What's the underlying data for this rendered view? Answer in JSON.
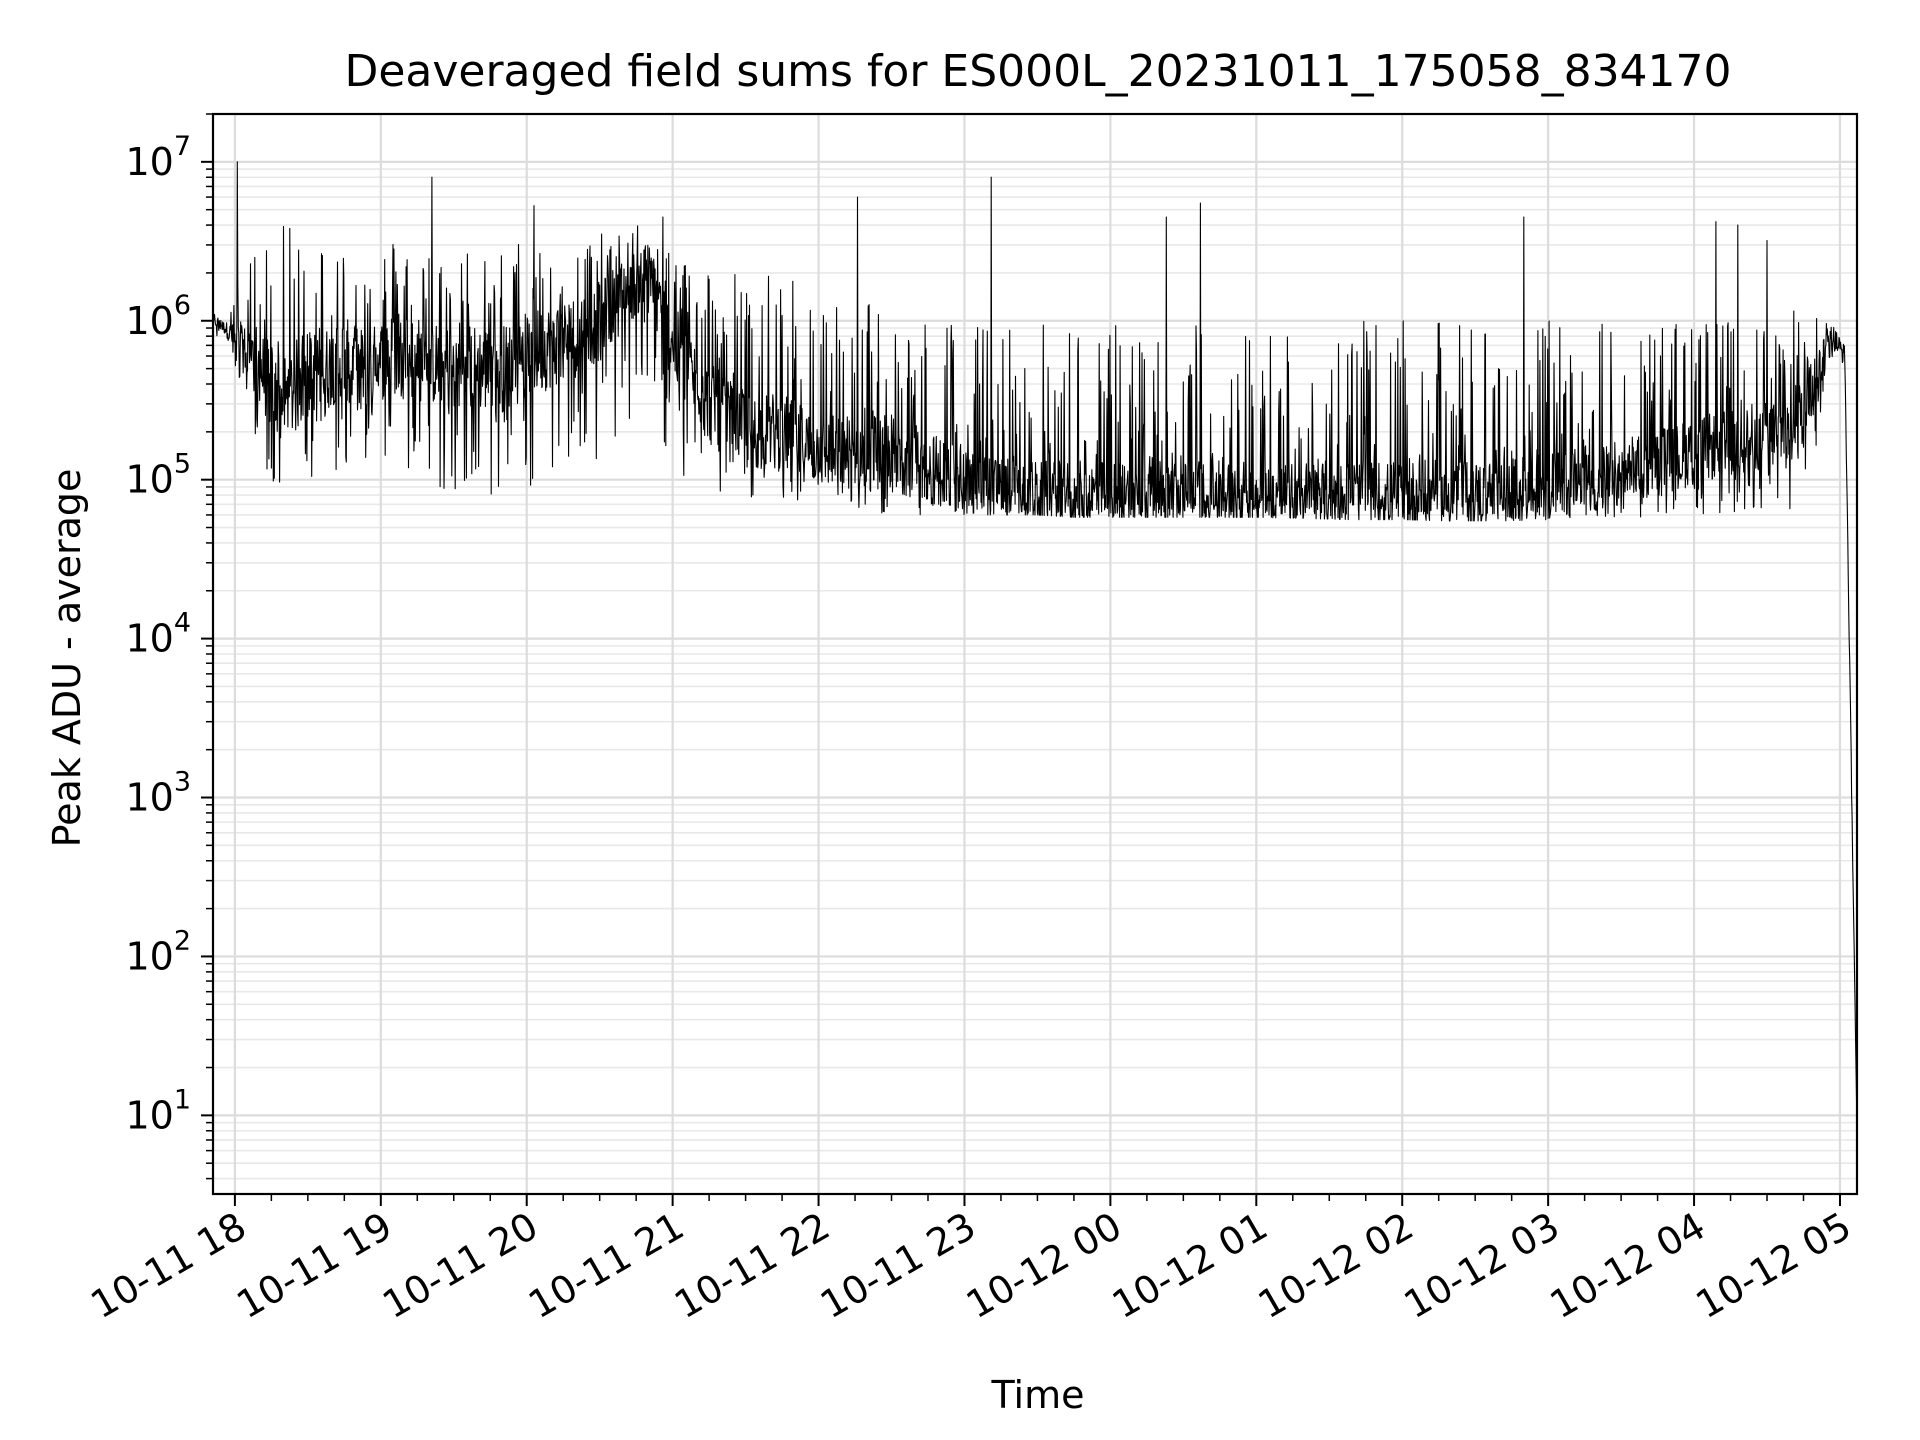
{
  "chart_data": {
    "type": "line",
    "title": "Deaveraged field sums for ES000L_20231011_175058_834170",
    "xlabel": "Time",
    "ylabel": "Peak ADU - average",
    "y_scale": "log",
    "ylim": [
      3.2,
      20000000
    ],
    "xlim": [
      "2023-10-11 17:51",
      "2023-10-12 05:07"
    ],
    "grid": "on (major and minor)",
    "line_color": "#000000",
    "x_ticks": [
      {
        "t": "2023-10-11 18:00",
        "label": "10-11 18"
      },
      {
        "t": "2023-10-11 19:00",
        "label": "10-11 19"
      },
      {
        "t": "2023-10-11 20:00",
        "label": "10-11 20"
      },
      {
        "t": "2023-10-11 21:00",
        "label": "10-11 21"
      },
      {
        "t": "2023-10-11 22:00",
        "label": "10-11 22"
      },
      {
        "t": "2023-10-11 23:00",
        "label": "10-11 23"
      },
      {
        "t": "2023-10-12 00:00",
        "label": "10-12 00"
      },
      {
        "t": "2023-10-12 01:00",
        "label": "10-12 01"
      },
      {
        "t": "2023-10-12 02:00",
        "label": "10-12 02"
      },
      {
        "t": "2023-10-12 03:00",
        "label": "10-12 03"
      },
      {
        "t": "2023-10-12 04:00",
        "label": "10-12 04"
      },
      {
        "t": "2023-10-12 05:00",
        "label": "10-12 05"
      }
    ],
    "y_ticks": [
      {
        "value": 10,
        "base": "10",
        "exp": "1"
      },
      {
        "value": 100,
        "base": "10",
        "exp": "2"
      },
      {
        "value": 1000,
        "base": "10",
        "exp": "3"
      },
      {
        "value": 10000,
        "base": "10",
        "exp": "4"
      },
      {
        "value": 100000,
        "base": "10",
        "exp": "5"
      },
      {
        "value": 1000000,
        "base": "10",
        "exp": "6"
      },
      {
        "value": 10000000,
        "base": "10",
        "exp": "7"
      }
    ],
    "series": [
      {
        "x": [
          "2023-10-11 17:51",
          "2023-10-11 17:56",
          "2023-10-11 18:02",
          "2023-10-11 18:08",
          "2023-10-11 18:14",
          "2023-10-11 18:20",
          "2023-10-11 18:26",
          "2023-10-11 18:32",
          "2023-10-11 18:38",
          "2023-10-11 18:44",
          "2023-10-11 18:50",
          "2023-10-11 18:56",
          "2023-10-11 19:02",
          "2023-10-11 19:10",
          "2023-10-11 19:20",
          "2023-10-11 19:30",
          "2023-10-11 19:40",
          "2023-10-11 19:50",
          "2023-10-11 20:00",
          "2023-10-11 20:10",
          "2023-10-11 20:20",
          "2023-10-11 20:30",
          "2023-10-11 20:40",
          "2023-10-11 20:50",
          "2023-10-11 21:00",
          "2023-10-11 21:15",
          "2023-10-11 21:30",
          "2023-10-11 21:45",
          "2023-10-11 22:00",
          "2023-10-11 22:15",
          "2023-10-11 22:30",
          "2023-10-11 22:45",
          "2023-10-11 23:00",
          "2023-10-11 23:15",
          "2023-10-11 23:30",
          "2023-10-11 23:45",
          "2023-10-12 00:00",
          "2023-10-12 00:20",
          "2023-10-12 00:40",
          "2023-10-12 01:00",
          "2023-10-12 01:20",
          "2023-10-12 01:40",
          "2023-10-12 02:00",
          "2023-10-12 02:20",
          "2023-10-12 02:40",
          "2023-10-12 03:00",
          "2023-10-12 03:20",
          "2023-10-12 03:40",
          "2023-10-12 04:00",
          "2023-10-12 04:20",
          "2023-10-12 04:40",
          "2023-10-12 04:57",
          "2023-10-12 05:02",
          "2023-10-12 05:07"
        ],
        "baseline": [
          1000000,
          900000,
          700000,
          600000,
          400000,
          300000,
          400000,
          500000,
          500000,
          600000,
          500000,
          500000,
          600000,
          600000,
          550000,
          500000,
          500000,
          500000,
          600000,
          700000,
          800000,
          1000000,
          1500000,
          2000000,
          700000,
          300000,
          200000,
          200000,
          150000,
          150000,
          150000,
          120000,
          100000,
          90000,
          80000,
          80000,
          80000,
          80000,
          80000,
          80000,
          80000,
          80000,
          80000,
          80000,
          80000,
          90000,
          100000,
          120000,
          150000,
          180000,
          200000,
          800000,
          600000,
          8
        ],
        "low": [
          800000,
          700000,
          400000,
          200000,
          100000,
          60000,
          80000,
          100000,
          100000,
          120000,
          90000,
          100000,
          110000,
          100000,
          90000,
          80000,
          70000,
          80000,
          90000,
          100000,
          110000,
          130000,
          200000,
          300000,
          90000,
          80000,
          75000,
          75000,
          70000,
          65000,
          60000,
          60000,
          60000,
          60000,
          60000,
          58000,
          58000,
          58000,
          58000,
          58000,
          57000,
          56000,
          56000,
          55000,
          55000,
          56000,
          57000,
          58000,
          60000,
          62000,
          65000,
          300000,
          100000,
          7
        ],
        "high": [
          1100000,
          1200000,
          2000000,
          3000000,
          3500000,
          4000000,
          4000000,
          3800000,
          3500000,
          3500000,
          3000000,
          3000000,
          3500000,
          3500000,
          3000000,
          3000000,
          3000000,
          3000000,
          3500000,
          3500000,
          3500000,
          3500000,
          4000000,
          4000000,
          3000000,
          2500000,
          2000000,
          2000000,
          1500000,
          1500000,
          1500000,
          1200000,
          1000000,
          1000000,
          1000000,
          1000000,
          1000000,
          1000000,
          1000000,
          1000000,
          1000000,
          1000000,
          1000000,
          1000000,
          1000000,
          1000000,
          1000000,
          1000000,
          1000000,
          1000000,
          1200000,
          1500000,
          1000000,
          9
        ],
        "spikes": [
          {
            "t": "2023-10-11 18:01",
            "value": 10000000
          },
          {
            "t": "2023-10-11 19:21",
            "value": 8000000
          },
          {
            "t": "2023-10-11 20:03",
            "value": 5300000
          },
          {
            "t": "2023-10-11 20:56",
            "value": 4500000
          },
          {
            "t": "2023-10-11 22:16",
            "value": 6000000
          },
          {
            "t": "2023-10-11 23:11",
            "value": 8000000
          },
          {
            "t": "2023-10-12 00:23",
            "value": 4500000
          },
          {
            "t": "2023-10-12 00:37",
            "value": 5500000
          },
          {
            "t": "2023-10-12 02:50",
            "value": 4500000
          },
          {
            "t": "2023-10-12 04:09",
            "value": 4200000
          },
          {
            "t": "2023-10-12 04:18",
            "value": 4000000
          },
          {
            "t": "2023-10-12 04:30",
            "value": 3200000
          }
        ]
      }
    ]
  }
}
